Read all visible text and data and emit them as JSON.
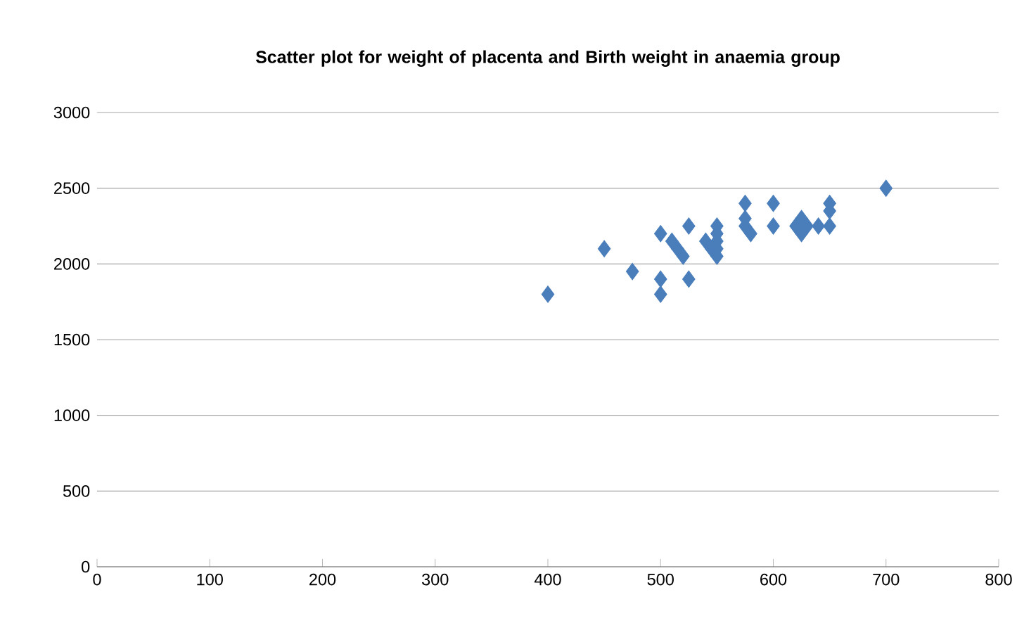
{
  "chart_data": {
    "type": "scatter",
    "title": "Scatter plot for weight of placenta and Birth weight in anaemia group",
    "x": [
      400,
      450,
      475,
      500,
      500,
      500,
      510,
      515,
      520,
      525,
      525,
      540,
      545,
      550,
      550,
      550,
      550,
      550,
      575,
      575,
      575,
      580,
      600,
      600,
      620,
      625,
      625,
      630,
      640,
      650,
      650,
      650,
      700
    ],
    "values": [
      1800,
      2100,
      1950,
      2200,
      1900,
      1800,
      2150,
      2100,
      2050,
      2250,
      1900,
      2150,
      2100,
      2250,
      2200,
      2150,
      2100,
      2050,
      2400,
      2300,
      2250,
      2200,
      2400,
      2250,
      2250,
      2300,
      2200,
      2250,
      2250,
      2400,
      2350,
      2250,
      2500
    ],
    "color": "#4a7ebb",
    "marker": "diamond",
    "grid": "y",
    "xlim": [
      0,
      800
    ],
    "xticks": [
      0,
      100,
      200,
      300,
      400,
      500,
      600,
      700,
      800
    ],
    "ylim": [
      0,
      3000
    ],
    "yticks": [
      0,
      500,
      1000,
      1500,
      2000,
      2500,
      3000
    ]
  }
}
